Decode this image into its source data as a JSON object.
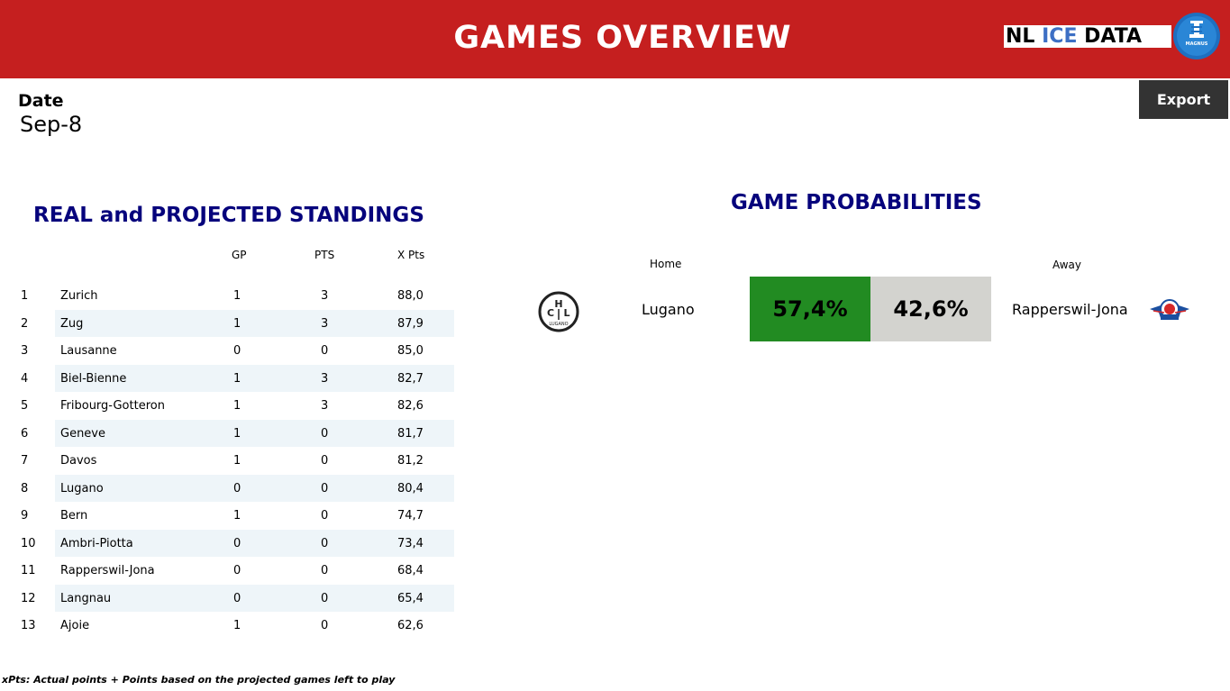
{
  "header": {
    "title": "GAMES OVERVIEW",
    "logo_nl": "NL",
    "logo_ice": "ICE",
    "logo_data": "DATA",
    "logo_cup_text": "MAGNUS"
  },
  "date": {
    "label": "Date",
    "value": "Sep-8"
  },
  "export": {
    "label": "Export"
  },
  "standings": {
    "title": "REAL and PROJECTED STANDINGS",
    "columns": {
      "gp": "GP",
      "pts": "PTS",
      "xpts": "X Pts"
    },
    "rows": [
      {
        "rank": "1",
        "team": "Zurich",
        "gp": "1",
        "pts": "3",
        "xpts": "88,0"
      },
      {
        "rank": "2",
        "team": "Zug",
        "gp": "1",
        "pts": "3",
        "xpts": "87,9"
      },
      {
        "rank": "3",
        "team": "Lausanne",
        "gp": "0",
        "pts": "0",
        "xpts": "85,0"
      },
      {
        "rank": "4",
        "team": "Biel-Bienne",
        "gp": "1",
        "pts": "3",
        "xpts": "82,7"
      },
      {
        "rank": "5",
        "team": "Fribourg-Gotteron",
        "gp": "1",
        "pts": "3",
        "xpts": "82,6"
      },
      {
        "rank": "6",
        "team": "Geneve",
        "gp": "1",
        "pts": "0",
        "xpts": "81,7"
      },
      {
        "rank": "7",
        "team": "Davos",
        "gp": "1",
        "pts": "0",
        "xpts": "81,2"
      },
      {
        "rank": "8",
        "team": "Lugano",
        "gp": "0",
        "pts": "0",
        "xpts": "80,4"
      },
      {
        "rank": "9",
        "team": "Bern",
        "gp": "1",
        "pts": "0",
        "xpts": "74,7"
      },
      {
        "rank": "10",
        "team": "Ambri-Piotta",
        "gp": "0",
        "pts": "0",
        "xpts": "73,4"
      },
      {
        "rank": "11",
        "team": "Rapperswil-Jona",
        "gp": "0",
        "pts": "0",
        "xpts": "68,4"
      },
      {
        "rank": "12",
        "team": "Langnau",
        "gp": "0",
        "pts": "0",
        "xpts": "65,4"
      },
      {
        "rank": "13",
        "team": "Ajoie",
        "gp": "1",
        "pts": "0",
        "xpts": "62,6"
      }
    ]
  },
  "probabilities": {
    "title": "GAME PROBABILITIES",
    "home_label": "Home",
    "away_label": "Away",
    "games": [
      {
        "home_team": "Lugano",
        "away_team": "Rapperswil-Jona",
        "home_pct": "57,4%",
        "away_pct": "42,6%",
        "home_logo_letters": [
          "H",
          "C",
          "L"
        ],
        "home_logo_word": "LUGANO",
        "home_color": "#228b22",
        "away_color": "#d3d3cf"
      }
    ]
  },
  "footnote": "xPts: Actual points + Points based on the projected games left to play",
  "colors": {
    "header_red": "#c51f1f",
    "title_navy": "#06037c",
    "logo_blue": "#3d6fc4",
    "row_stripe": "#eef5f9",
    "export_bg": "#333333"
  },
  "icons": [
    "nl-ice-data-logo",
    "magnus-cup-icon",
    "hc-lugano-logo-icon",
    "rapperswil-jona-lakers-logo-icon"
  ]
}
